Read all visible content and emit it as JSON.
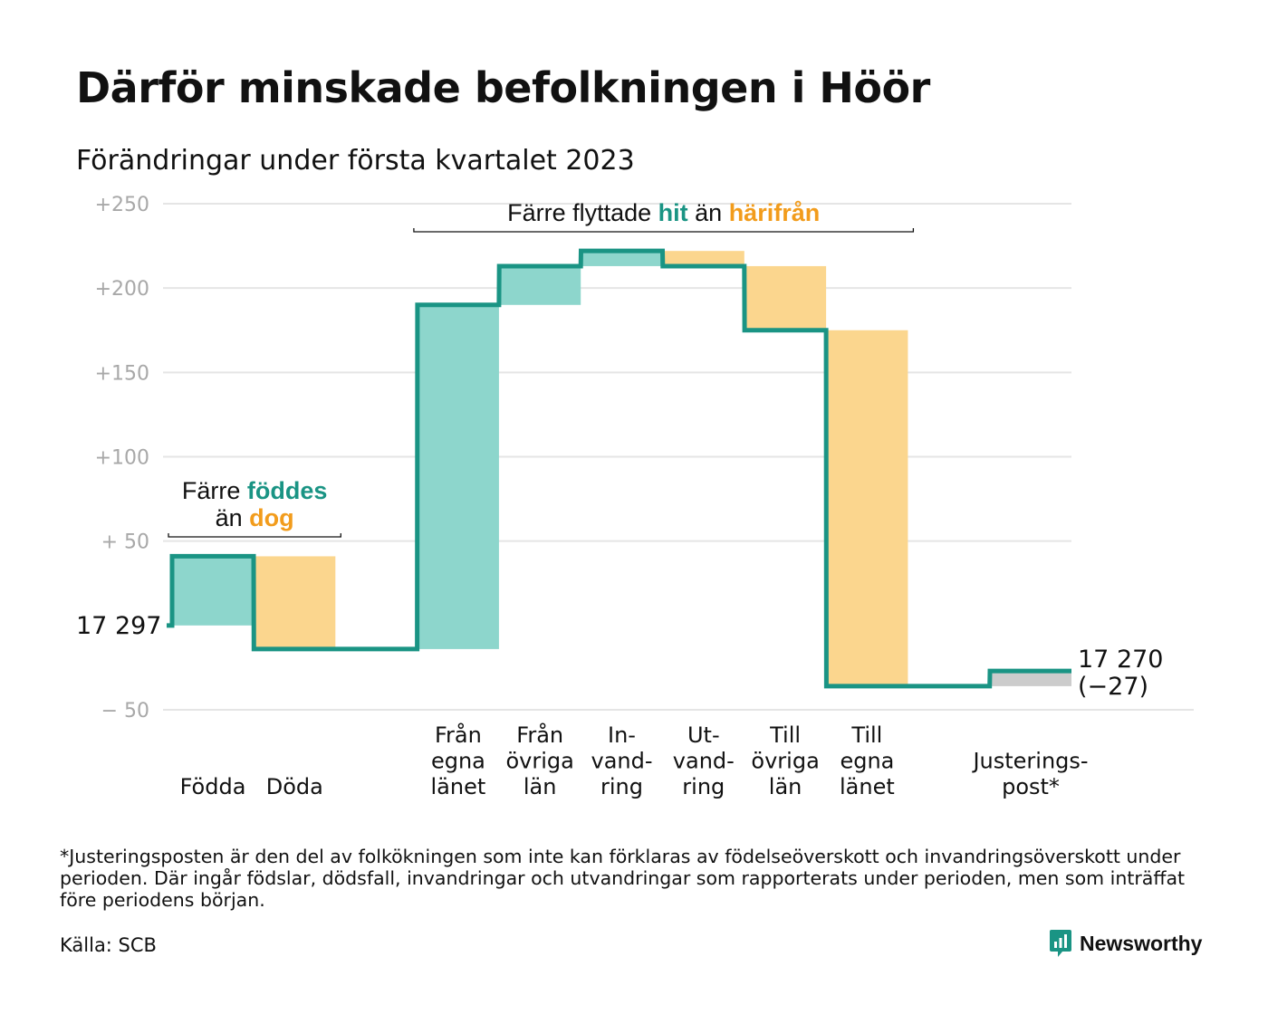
{
  "title": "Därför minskade befolkningen i Höör",
  "subtitle": "Förändringar under första kvartalet 2023",
  "colors": {
    "increase": "#8dd6cc",
    "decrease": "#fbd68e",
    "adjustment": "#cccccc",
    "line": "#1a9484",
    "accent_in": "#1a9484",
    "accent_out": "#f29c1c",
    "grid": "#e5e5e5"
  },
  "chart_data": {
    "type": "waterfall",
    "start_value": 17297,
    "start_label": "17 297",
    "end_value": 17270,
    "end_label": "17 270",
    "end_change_label": "(−27)",
    "ylim": [
      -50,
      250
    ],
    "yticks": [
      {
        "value": 250,
        "label": "+250"
      },
      {
        "value": 200,
        "label": "+200"
      },
      {
        "value": 150,
        "label": "+150"
      },
      {
        "value": 100,
        "label": "+100"
      },
      {
        "value": 50,
        "label": "+ 50"
      },
      {
        "value": -50,
        "label": "− 50"
      }
    ],
    "steps": [
      {
        "key": "fodda",
        "label_lines": [
          "Födda"
        ],
        "change": 41,
        "kind": "increase"
      },
      {
        "key": "doda",
        "label_lines": [
          "Döda"
        ],
        "change": -55,
        "kind": "decrease"
      },
      {
        "key": "gap",
        "label_lines": [],
        "change": 0,
        "kind": "gap"
      },
      {
        "key": "fran-egna-lanet",
        "label_lines": [
          "Från",
          "egna",
          "länet"
        ],
        "change": 204,
        "kind": "increase"
      },
      {
        "key": "fran-ovriga-lan",
        "label_lines": [
          "Från",
          "övriga",
          "län"
        ],
        "change": 23,
        "kind": "increase"
      },
      {
        "key": "invandring",
        "label_lines": [
          "In-",
          "vand-",
          "ring"
        ],
        "change": 9,
        "kind": "increase"
      },
      {
        "key": "utvandring",
        "label_lines": [
          "Ut-",
          "vand-",
          "ring"
        ],
        "change": -9,
        "kind": "decrease"
      },
      {
        "key": "till-ovriga-lan",
        "label_lines": [
          "Till",
          "övriga",
          "län"
        ],
        "change": -38,
        "kind": "decrease"
      },
      {
        "key": "till-egna-lanet",
        "label_lines": [
          "Till",
          "egna",
          "länet"
        ],
        "change": -211,
        "kind": "decrease"
      },
      {
        "key": "gap2",
        "label_lines": [],
        "change": 0,
        "kind": "gap"
      },
      {
        "key": "justeringspost",
        "label_lines": [
          "Justerings-",
          "post*"
        ],
        "change": 9,
        "kind": "adjustment"
      }
    ],
    "annotations": [
      {
        "key": "births",
        "lines": [
          [
            "Färre ",
            "föddes"
          ],
          [
            "än ",
            "dog"
          ]
        ],
        "span": [
          "fodda",
          "doda"
        ]
      },
      {
        "key": "moves",
        "lines": [
          [
            "Färre flyttade ",
            "hit",
            " än ",
            "härifrån"
          ]
        ],
        "span": [
          "fran-egna-lanet",
          "till-egna-lanet"
        ]
      }
    ]
  },
  "footnote": "*Justeringsposten är den del av folkökningen som inte kan förklaras av födelseöverskott och invandringsöverskott under perioden. Där ingår födslar, dödsfall, invandringar och utvandringar som rapporterats under perioden, men som inträffat före periodens början.",
  "source": "Källa: SCB",
  "brand": {
    "name": "Newsworthy",
    "icon": "newsworthy-logo-icon"
  }
}
